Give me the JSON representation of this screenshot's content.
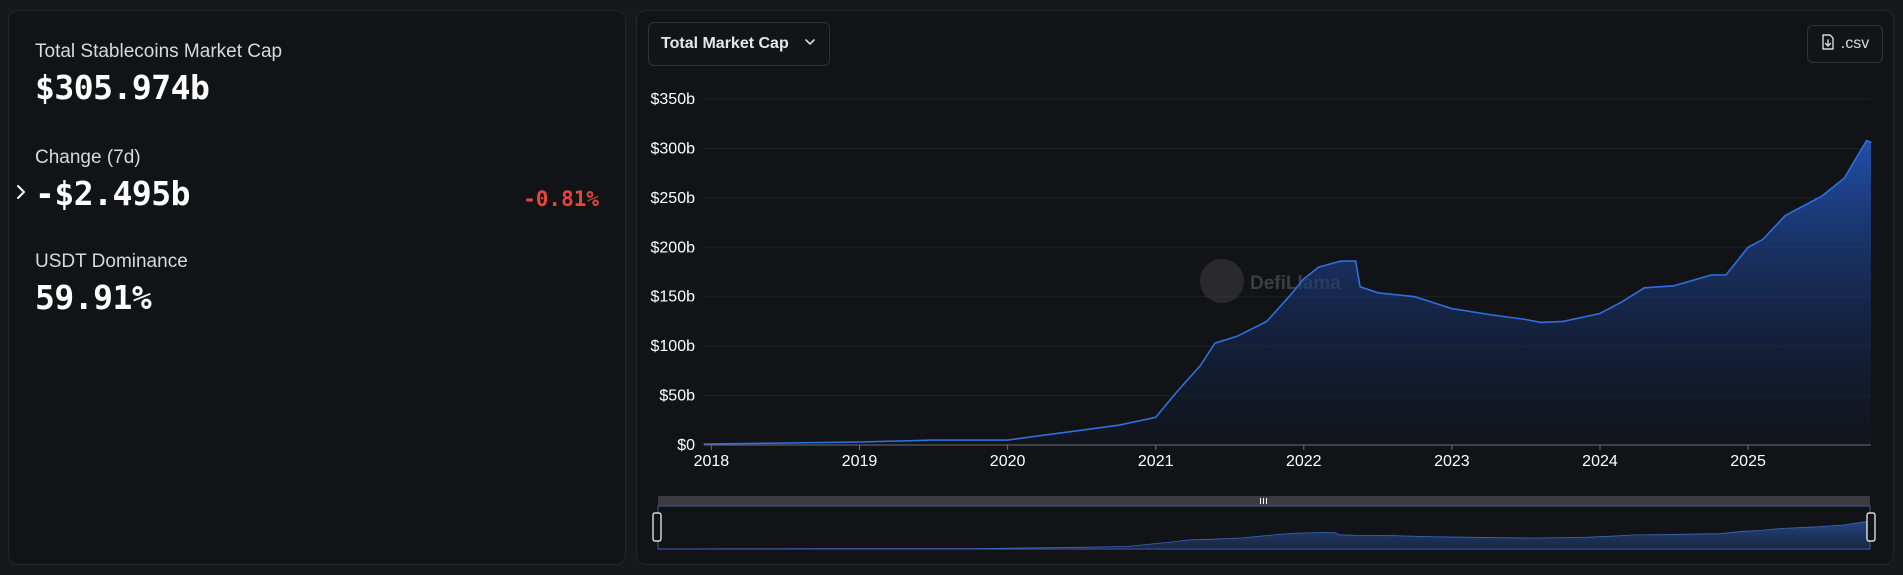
{
  "stats": {
    "total_label": "Total Stablecoins Market Cap",
    "total_value": "$305.974b",
    "change_label": "Change (7d)",
    "change_value": "-$2.495b",
    "change_pct": "-0.81%",
    "dominance_label": "USDT Dominance",
    "dominance_value": "59.91%"
  },
  "toolbar": {
    "metric_selected": "Total Market Cap",
    "csv_label": ".csv"
  },
  "watermark": "DefiLlama",
  "colors": {
    "line": "#2f6fe0",
    "negative": "#e5453a",
    "panel": "#121316"
  },
  "chart_data": {
    "type": "area",
    "title": "",
    "xlabel": "",
    "ylabel": "",
    "x_ticks": [
      "2018",
      "2019",
      "2020",
      "2021",
      "2022",
      "2023",
      "2024",
      "2025"
    ],
    "y_ticks": [
      "$0",
      "$50b",
      "$100b",
      "$150b",
      "$200b",
      "$250b",
      "$300b",
      "$350b"
    ],
    "xlim": [
      2017.95,
      2025.83
    ],
    "ylim": [
      0,
      350
    ],
    "y_unit": "billions USD",
    "grid": "horizontal",
    "series": [
      {
        "x": [
          2017.95,
          2018.5,
          2019.0,
          2019.5,
          2020.0,
          2020.25,
          2020.5,
          2020.75,
          2021.0,
          2021.15,
          2021.3,
          2021.4,
          2021.55,
          2021.75,
          2021.9,
          2022.0,
          2022.1,
          2022.25,
          2022.35,
          2022.38,
          2022.5,
          2022.75,
          2023.0,
          2023.25,
          2023.5,
          2023.6,
          2023.75,
          2024.0,
          2024.15,
          2024.3,
          2024.5,
          2024.75,
          2024.85,
          2025.0,
          2025.1,
          2025.25,
          2025.5,
          2025.65,
          2025.8,
          2025.83
        ],
        "values": [
          1,
          2,
          3,
          5,
          5,
          10,
          15,
          20,
          28,
          55,
          80,
          103,
          110,
          125,
          150,
          168,
          180,
          186,
          186,
          160,
          154,
          150,
          138,
          132,
          127,
          124,
          125,
          133,
          145,
          159,
          161,
          172,
          172,
          200,
          208,
          232,
          252,
          270,
          308,
          306
        ]
      }
    ]
  }
}
